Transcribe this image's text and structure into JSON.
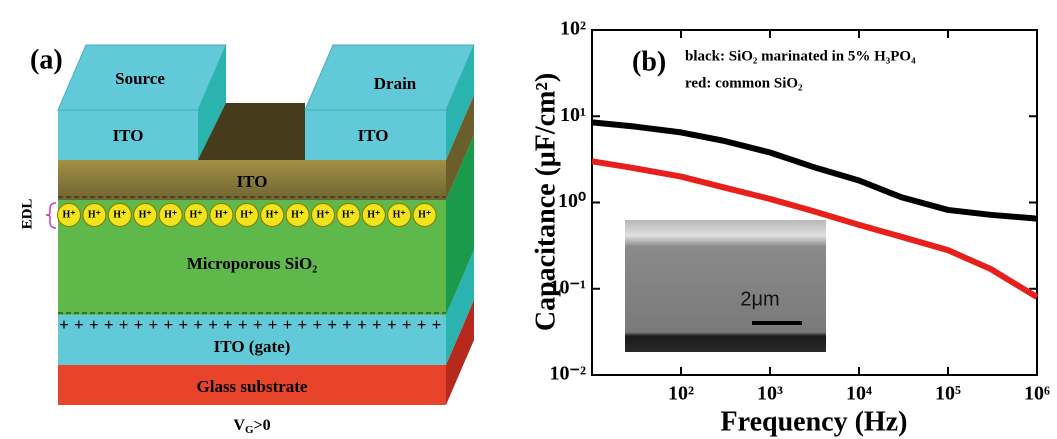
{
  "diagram": {
    "panel_label": "(a)",
    "source": "Source",
    "drain": "Drain",
    "source_material": "ITO",
    "drain_material": "ITO",
    "channel": "ITO",
    "edl": "EDL",
    "proton": "H⁺",
    "dielectric": "Microporous SiO₂",
    "plus_sign": "+",
    "gate": "ITO (gate)",
    "substrate": "Glass substrate",
    "gate_voltage": {
      "symbol": "V",
      "subscript": "G",
      "condition": ">0"
    }
  },
  "chart_data": {
    "type": "line",
    "panel_label": "(b)",
    "annotations": [
      "black: SiO₂ marinated in 5% H₃PO₄",
      "red: common SiO₂"
    ],
    "inset_label": "2μm",
    "x_label": "Frequency (Hz)",
    "y_label": "Capacitance (μF/cm²)",
    "log_x": true,
    "log_y": true,
    "x": [
      10,
      30,
      100,
      300,
      1000,
      3000,
      10000,
      30000,
      100000,
      300000,
      1000000
    ],
    "series": [
      {
        "color": "#000000",
        "values": [
          8.5,
          7.6,
          6.5,
          5.2,
          3.8,
          2.6,
          1.8,
          1.15,
          0.82,
          0.72,
          0.65
        ]
      },
      {
        "color": "#e8201c",
        "values": [
          3.0,
          2.5,
          2.0,
          1.5,
          1.1,
          0.8,
          0.55,
          0.4,
          0.28,
          0.17,
          0.08
        ]
      }
    ],
    "xlim": [
      10,
      1000000
    ],
    "xticks": [
      {
        "value": 100,
        "label": "10²"
      },
      {
        "value": 1000,
        "label": "10³"
      },
      {
        "value": 10000,
        "label": "10⁴"
      },
      {
        "value": 100000,
        "label": "10⁵"
      },
      {
        "value": 1000000,
        "label": "10⁶"
      }
    ],
    "ylim": [
      0.01,
      100
    ],
    "yticks": [
      {
        "value": 0.01,
        "label": "10⁻²"
      },
      {
        "value": 0.1,
        "label": "10⁻¹"
      },
      {
        "value": 1,
        "label": "10⁰"
      },
      {
        "value": 10,
        "label": "10¹"
      },
      {
        "value": 100,
        "label": "10²"
      }
    ]
  }
}
